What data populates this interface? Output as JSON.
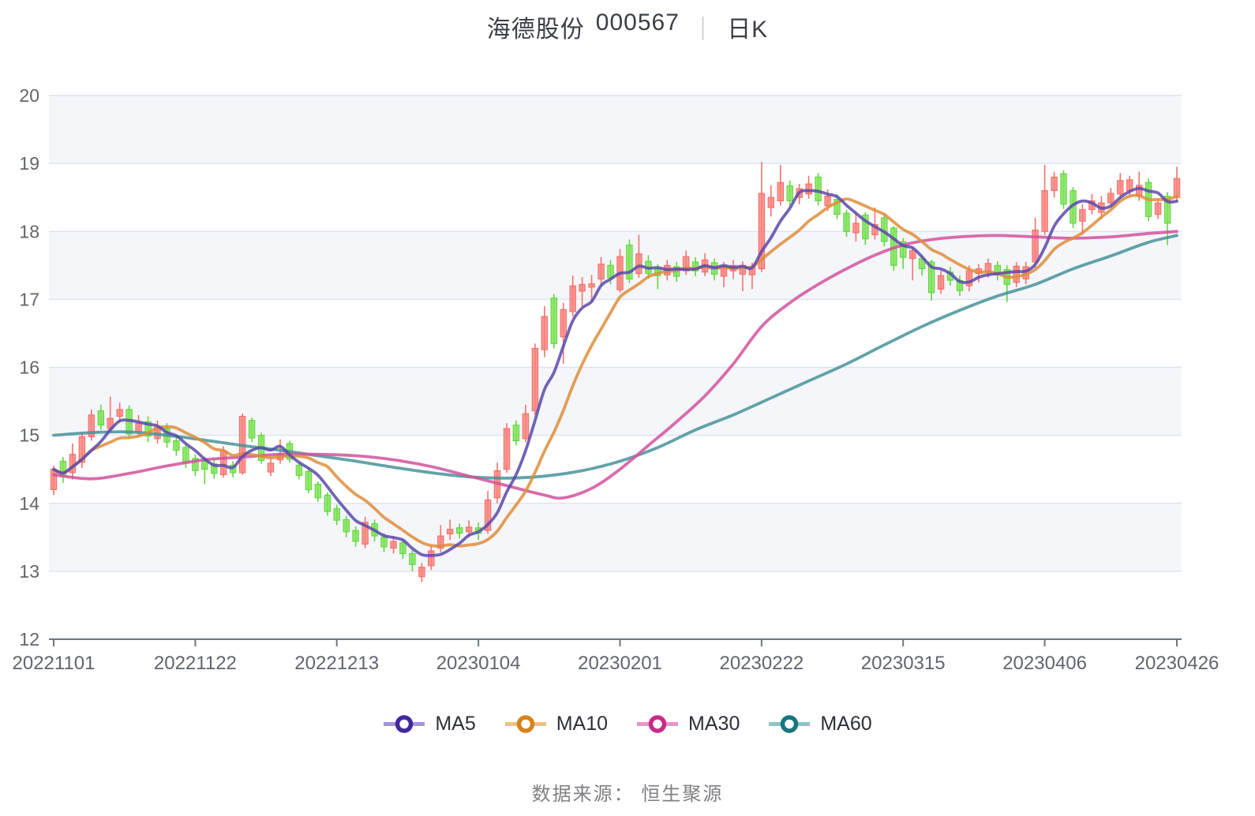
{
  "title": {
    "stock_name": "海德股份",
    "stock_code": "000567",
    "divider": "|",
    "period": "日K"
  },
  "legend": {
    "items": [
      {
        "label": "MA5",
        "color": "#41289e",
        "line_color": "#a493d6"
      },
      {
        "label": "MA10",
        "color": "#d8821f",
        "line_color": "#edc089"
      },
      {
        "label": "MA30",
        "color": "#c92b88",
        "line_color": "#e795c8"
      },
      {
        "label": "MA60",
        "color": "#17767f",
        "line_color": "#8fc3c6"
      }
    ]
  },
  "source_note": {
    "text": "数据来源： 恒生聚源"
  },
  "chart_data": {
    "type": "candlestick",
    "title": "海德股份 000567 日K",
    "grid": {
      "band_fill": "#f4f6fa",
      "line_color": "#dce3ef",
      "axis_color": "#6e7480",
      "label_color": "#60656f"
    },
    "up_border": "#f56a64",
    "up_fill": "#f9817b",
    "down_border": "#5bd437",
    "down_fill": "#7ee356",
    "y_axis": {
      "min": 12,
      "max": 20,
      "tick_labels": [
        "12",
        "13",
        "14",
        "15",
        "16",
        "17",
        "18",
        "19",
        "20"
      ]
    },
    "x_axis": {
      "tick_labels": [
        "20221101",
        "20221122",
        "20221213",
        "20230104",
        "20230201",
        "20230222",
        "20230315",
        "20230406",
        "20230426"
      ],
      "tick_indices": [
        0,
        15,
        30,
        45,
        60,
        75,
        90,
        105,
        119
      ]
    },
    "dates": [
      "20221101",
      "20221102",
      "20221103",
      "20221104",
      "20221107",
      "20221108",
      "20221109",
      "20221110",
      "20221111",
      "20221114",
      "20221115",
      "20221116",
      "20221117",
      "20221118",
      "20221121",
      "20221122",
      "20221123",
      "20221124",
      "20221125",
      "20221128",
      "20221129",
      "20221130",
      "20221201",
      "20221202",
      "20221205",
      "20221206",
      "20221207",
      "20221208",
      "20221209",
      "20221212",
      "20221213",
      "20221214",
      "20221215",
      "20221216",
      "20221219",
      "20221220",
      "20221221",
      "20221222",
      "20221223",
      "20221226",
      "20221227",
      "20221228",
      "20221229",
      "20221230",
      "20230103",
      "20230104",
      "20230105",
      "20230106",
      "20230109",
      "20230110",
      "20230111",
      "20230112",
      "20230113",
      "20230116",
      "20230117",
      "20230118",
      "20230119",
      "20230120",
      "20230130",
      "20230131",
      "20230201",
      "20230202",
      "20230203",
      "20230206",
      "20230207",
      "20230208",
      "20230209",
      "20230210",
      "20230213",
      "20230214",
      "20230215",
      "20230216",
      "20230217",
      "20230220",
      "20230221",
      "20230222",
      "20230223",
      "20230224",
      "20230227",
      "20230228",
      "20230301",
      "20230302",
      "20230303",
      "20230306",
      "20230307",
      "20230308",
      "20230309",
      "20230310",
      "20230313",
      "20230314",
      "20230315",
      "20230316",
      "20230317",
      "20230320",
      "20230321",
      "20230322",
      "20230323",
      "20230324",
      "20230327",
      "20230328",
      "20230329",
      "20230330",
      "20230331",
      "20230403",
      "20230404",
      "20230406",
      "20230407",
      "20230410",
      "20230411",
      "20230412",
      "20230413",
      "20230414",
      "20230417",
      "20230418",
      "20230419",
      "20230420",
      "20230421",
      "20230424",
      "20230425",
      "20230426"
    ],
    "ohlc_order": [
      "open",
      "close",
      "low",
      "high"
    ],
    "candles": [
      [
        14.2,
        14.5,
        14.12,
        14.55
      ],
      [
        14.62,
        14.39,
        14.3,
        14.68
      ],
      [
        14.45,
        14.72,
        14.35,
        14.88
      ],
      [
        14.6,
        14.98,
        14.52,
        15.05
      ],
      [
        14.98,
        15.3,
        14.92,
        15.38
      ],
      [
        15.36,
        15.15,
        15.08,
        15.45
      ],
      [
        15.1,
        15.25,
        15.04,
        15.57
      ],
      [
        15.28,
        15.38,
        15.2,
        15.48
      ],
      [
        15.38,
        15.02,
        14.97,
        15.44
      ],
      [
        15.05,
        15.18,
        14.98,
        15.3
      ],
      [
        15.2,
        14.99,
        14.9,
        15.28
      ],
      [
        14.95,
        15.12,
        14.88,
        15.22
      ],
      [
        15.1,
        14.9,
        14.82,
        15.18
      ],
      [
        14.92,
        14.78,
        14.7,
        15.0
      ],
      [
        14.82,
        14.6,
        14.52,
        14.88
      ],
      [
        14.66,
        14.48,
        14.4,
        14.72
      ],
      [
        14.62,
        14.5,
        14.28,
        14.68
      ],
      [
        14.58,
        14.44,
        14.36,
        14.65
      ],
      [
        14.42,
        14.77,
        14.38,
        14.84
      ],
      [
        14.56,
        14.45,
        14.38,
        14.62
      ],
      [
        14.45,
        15.28,
        14.42,
        15.32
      ],
      [
        15.22,
        14.96,
        14.9,
        15.26
      ],
      [
        15.0,
        14.63,
        14.58,
        15.04
      ],
      [
        14.46,
        14.59,
        14.4,
        14.68
      ],
      [
        14.64,
        14.73,
        14.58,
        14.94
      ],
      [
        14.88,
        14.65,
        14.6,
        14.92
      ],
      [
        14.56,
        14.41,
        14.35,
        14.6
      ],
      [
        14.47,
        14.2,
        14.15,
        14.52
      ],
      [
        14.28,
        14.08,
        14.02,
        14.32
      ],
      [
        14.12,
        13.88,
        13.82,
        14.16
      ],
      [
        13.92,
        13.75,
        13.68,
        13.98
      ],
      [
        13.76,
        13.58,
        13.5,
        13.82
      ],
      [
        13.6,
        13.44,
        13.36,
        13.66
      ],
      [
        13.4,
        13.72,
        13.34,
        13.8
      ],
      [
        13.7,
        13.52,
        13.44,
        13.76
      ],
      [
        13.5,
        13.36,
        13.28,
        13.56
      ],
      [
        13.34,
        13.44,
        13.26,
        13.52
      ],
      [
        13.42,
        13.26,
        13.18,
        13.48
      ],
      [
        13.26,
        13.1,
        13.0,
        13.32
      ],
      [
        12.92,
        13.06,
        12.84,
        13.12
      ],
      [
        13.08,
        13.3,
        13.02,
        13.38
      ],
      [
        13.34,
        13.52,
        13.28,
        13.68
      ],
      [
        13.55,
        13.62,
        13.46,
        13.76
      ],
      [
        13.64,
        13.56,
        13.48,
        13.7
      ],
      [
        13.58,
        13.65,
        13.5,
        13.75
      ],
      [
        13.64,
        13.56,
        13.46,
        13.72
      ],
      [
        13.6,
        14.05,
        13.55,
        14.18
      ],
      [
        14.08,
        14.48,
        14.0,
        14.6
      ],
      [
        14.5,
        15.1,
        14.45,
        15.18
      ],
      [
        15.15,
        14.92,
        14.85,
        15.22
      ],
      [
        14.95,
        15.32,
        14.9,
        15.45
      ],
      [
        15.36,
        16.28,
        15.3,
        16.35
      ],
      [
        16.26,
        16.75,
        16.15,
        16.9
      ],
      [
        17.02,
        16.35,
        16.28,
        17.08
      ],
      [
        16.45,
        16.85,
        16.05,
        16.95
      ],
      [
        16.82,
        17.2,
        16.75,
        17.35
      ],
      [
        17.12,
        17.22,
        16.9,
        17.33
      ],
      [
        17.18,
        17.23,
        16.95,
        17.36
      ],
      [
        17.3,
        17.52,
        17.2,
        17.62
      ],
      [
        17.5,
        17.32,
        17.22,
        17.58
      ],
      [
        17.14,
        17.63,
        17.1,
        17.74
      ],
      [
        17.8,
        17.3,
        17.24,
        17.88
      ],
      [
        17.38,
        17.67,
        17.32,
        17.95
      ],
      [
        17.56,
        17.38,
        17.3,
        17.65
      ],
      [
        17.44,
        17.35,
        17.15,
        17.52
      ],
      [
        17.36,
        17.5,
        17.28,
        17.58
      ],
      [
        17.48,
        17.34,
        17.26,
        17.55
      ],
      [
        17.42,
        17.63,
        17.36,
        17.72
      ],
      [
        17.55,
        17.42,
        17.34,
        17.62
      ],
      [
        17.4,
        17.58,
        17.34,
        17.68
      ],
      [
        17.54,
        17.37,
        17.28,
        17.6
      ],
      [
        17.34,
        17.48,
        17.18,
        17.55
      ],
      [
        17.42,
        17.5,
        17.3,
        17.58
      ],
      [
        17.37,
        17.5,
        17.12,
        17.56
      ],
      [
        17.36,
        17.48,
        17.15,
        17.54
      ],
      [
        17.45,
        18.56,
        17.4,
        19.02
      ],
      [
        18.35,
        18.5,
        18.22,
        18.68
      ],
      [
        18.45,
        18.72,
        18.38,
        18.98
      ],
      [
        18.67,
        18.45,
        18.36,
        18.75
      ],
      [
        18.5,
        18.63,
        18.4,
        18.7
      ],
      [
        18.55,
        18.7,
        18.48,
        18.82
      ],
      [
        18.8,
        18.45,
        18.38,
        18.86
      ],
      [
        18.38,
        18.52,
        18.3,
        18.62
      ],
      [
        18.47,
        18.25,
        18.18,
        18.55
      ],
      [
        18.27,
        18.0,
        17.92,
        18.32
      ],
      [
        17.98,
        18.12,
        17.85,
        18.3
      ],
      [
        18.24,
        17.89,
        17.8,
        18.28
      ],
      [
        17.95,
        18.1,
        17.88,
        18.35
      ],
      [
        18.2,
        17.85,
        17.78,
        18.25
      ],
      [
        18.05,
        17.5,
        17.42,
        18.08
      ],
      [
        17.85,
        17.62,
        17.45,
        17.9
      ],
      [
        17.6,
        17.72,
        17.28,
        17.78
      ],
      [
        17.6,
        17.45,
        17.35,
        17.66
      ],
      [
        17.55,
        17.1,
        16.98,
        17.58
      ],
      [
        17.15,
        17.35,
        17.08,
        17.42
      ],
      [
        17.4,
        17.28,
        17.2,
        17.48
      ],
      [
        17.28,
        17.13,
        17.05,
        17.35
      ],
      [
        17.2,
        17.42,
        17.12,
        17.5
      ],
      [
        17.38,
        17.45,
        17.25,
        17.52
      ],
      [
        17.4,
        17.53,
        17.32,
        17.6
      ],
      [
        17.5,
        17.36,
        17.28,
        17.56
      ],
      [
        17.44,
        17.22,
        16.96,
        17.5
      ],
      [
        17.25,
        17.49,
        17.18,
        17.55
      ],
      [
        17.3,
        17.48,
        17.22,
        17.55
      ],
      [
        17.55,
        18.02,
        17.46,
        18.2
      ],
      [
        18.0,
        18.6,
        17.95,
        18.98
      ],
      [
        18.6,
        18.8,
        18.5,
        18.88
      ],
      [
        18.85,
        18.4,
        18.33,
        18.9
      ],
      [
        18.6,
        18.12,
        18.05,
        18.65
      ],
      [
        18.15,
        18.32,
        17.95,
        18.4
      ],
      [
        18.32,
        18.45,
        18.25,
        18.55
      ],
      [
        18.28,
        18.42,
        18.18,
        18.52
      ],
      [
        18.42,
        18.56,
        18.35,
        18.64
      ],
      [
        18.55,
        18.75,
        18.48,
        18.86
      ],
      [
        18.6,
        18.76,
        18.52,
        18.82
      ],
      [
        18.52,
        18.68,
        18.45,
        18.88
      ],
      [
        18.72,
        18.22,
        18.15,
        18.78
      ],
      [
        18.25,
        18.42,
        18.18,
        18.48
      ],
      [
        18.52,
        18.12,
        17.8,
        18.58
      ],
      [
        18.5,
        18.78,
        18.45,
        18.95
      ]
    ],
    "moving_averages": {
      "computed": [
        {
          "name": "MA5",
          "window": 5,
          "color": "#5b49ab"
        },
        {
          "name": "MA10",
          "window": 10,
          "color": "#de8d3a"
        }
      ],
      "sampled": [
        {
          "name": "MA30",
          "color": "#d1529e",
          "points": [
            [
              0,
              14.42
            ],
            [
              4,
              14.36
            ],
            [
              8,
              14.44
            ],
            [
              12,
              14.55
            ],
            [
              16,
              14.64
            ],
            [
              20,
              14.68
            ],
            [
              24,
              14.72
            ],
            [
              28,
              14.72
            ],
            [
              32,
              14.7
            ],
            [
              36,
              14.64
            ],
            [
              40,
              14.54
            ],
            [
              44,
              14.4
            ],
            [
              48,
              14.26
            ],
            [
              52,
              14.12
            ],
            [
              54,
              14.08
            ],
            [
              57,
              14.22
            ],
            [
              60,
              14.5
            ],
            [
              63,
              14.85
            ],
            [
              66,
              15.2
            ],
            [
              69,
              15.58
            ],
            [
              72,
              16.05
            ],
            [
              75,
              16.6
            ],
            [
              78,
              16.95
            ],
            [
              81,
              17.22
            ],
            [
              84,
              17.45
            ],
            [
              87,
              17.65
            ],
            [
              90,
              17.8
            ],
            [
              93,
              17.88
            ],
            [
              96,
              17.92
            ],
            [
              100,
              17.94
            ],
            [
              104,
              17.92
            ],
            [
              108,
              17.9
            ],
            [
              112,
              17.92
            ],
            [
              116,
              17.97
            ],
            [
              119,
              18.0
            ]
          ]
        },
        {
          "name": "MA60",
          "color": "#47939a",
          "points": [
            [
              0,
              15.0
            ],
            [
              4,
              15.04
            ],
            [
              8,
              15.05
            ],
            [
              12,
              15.0
            ],
            [
              16,
              14.93
            ],
            [
              20,
              14.85
            ],
            [
              24,
              14.78
            ],
            [
              28,
              14.7
            ],
            [
              32,
              14.62
            ],
            [
              36,
              14.53
            ],
            [
              40,
              14.45
            ],
            [
              44,
              14.39
            ],
            [
              48,
              14.37
            ],
            [
              52,
              14.4
            ],
            [
              56,
              14.48
            ],
            [
              60,
              14.62
            ],
            [
              64,
              14.82
            ],
            [
              68,
              15.08
            ],
            [
              72,
              15.3
            ],
            [
              76,
              15.55
            ],
            [
              80,
              15.8
            ],
            [
              84,
              16.05
            ],
            [
              88,
              16.33
            ],
            [
              92,
              16.6
            ],
            [
              96,
              16.84
            ],
            [
              100,
              17.05
            ],
            [
              104,
              17.22
            ],
            [
              108,
              17.45
            ],
            [
              112,
              17.64
            ],
            [
              116,
              17.84
            ],
            [
              119,
              17.94
            ]
          ]
        }
      ]
    }
  }
}
